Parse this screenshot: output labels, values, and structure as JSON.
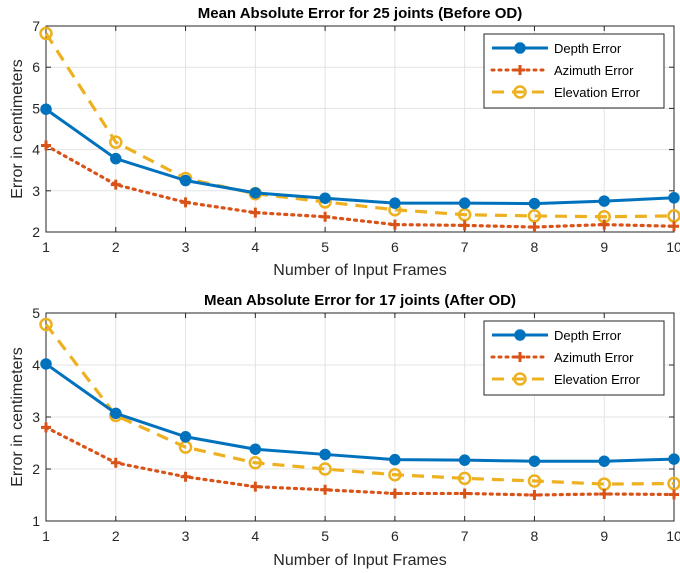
{
  "chart_data": [
    {
      "type": "line",
      "title": "Mean Absolute Error for 25 joints (Before OD)",
      "xlabel": "Number of Input Frames",
      "ylabel": "Error in centimeters",
      "x": [
        1,
        2,
        3,
        4,
        5,
        6,
        7,
        8,
        9,
        10
      ],
      "xlim": [
        1,
        10
      ],
      "ylim": [
        2,
        7
      ],
      "yticks": [
        2,
        3,
        4,
        5,
        6,
        7
      ],
      "grid": true,
      "legend_position": "top-right",
      "series": [
        {
          "name": "Depth Error",
          "color": "#0072BD",
          "style": "solid",
          "marker": "circle-filled",
          "values": [
            4.98,
            3.78,
            3.25,
            2.95,
            2.82,
            2.7,
            2.7,
            2.69,
            2.75,
            2.83
          ]
        },
        {
          "name": "Azimuth Error",
          "color": "#D95319",
          "style": "dotted",
          "marker": "plus",
          "values": [
            4.1,
            3.15,
            2.72,
            2.47,
            2.37,
            2.18,
            2.16,
            2.12,
            2.18,
            2.14
          ]
        },
        {
          "name": "Elevation Error",
          "color": "#EDB120",
          "style": "dashed",
          "marker": "circle-open",
          "values": [
            6.82,
            4.18,
            3.3,
            2.93,
            2.73,
            2.54,
            2.42,
            2.39,
            2.37,
            2.39
          ]
        }
      ]
    },
    {
      "type": "line",
      "title": "Mean Absolute Error for 17 joints (After OD)",
      "xlabel": "Number of Input Frames",
      "ylabel": "Error in centimeters",
      "x": [
        1,
        2,
        3,
        4,
        5,
        6,
        7,
        8,
        9,
        10
      ],
      "xlim": [
        1,
        10
      ],
      "ylim": [
        1,
        5
      ],
      "yticks": [
        1,
        2,
        3,
        4,
        5
      ],
      "grid": true,
      "legend_position": "top-right",
      "series": [
        {
          "name": "Depth Error",
          "color": "#0072BD",
          "style": "solid",
          "marker": "circle-filled",
          "values": [
            4.02,
            3.07,
            2.62,
            2.38,
            2.28,
            2.18,
            2.17,
            2.15,
            2.15,
            2.19
          ]
        },
        {
          "name": "Azimuth Error",
          "color": "#D95319",
          "style": "dotted",
          "marker": "plus",
          "values": [
            2.8,
            2.12,
            1.85,
            1.66,
            1.6,
            1.53,
            1.53,
            1.5,
            1.52,
            1.51
          ]
        },
        {
          "name": "Elevation Error",
          "color": "#EDB120",
          "style": "dashed",
          "marker": "circle-open",
          "values": [
            4.78,
            3.03,
            2.42,
            2.12,
            2.0,
            1.89,
            1.82,
            1.77,
            1.71,
            1.72
          ]
        }
      ]
    }
  ]
}
